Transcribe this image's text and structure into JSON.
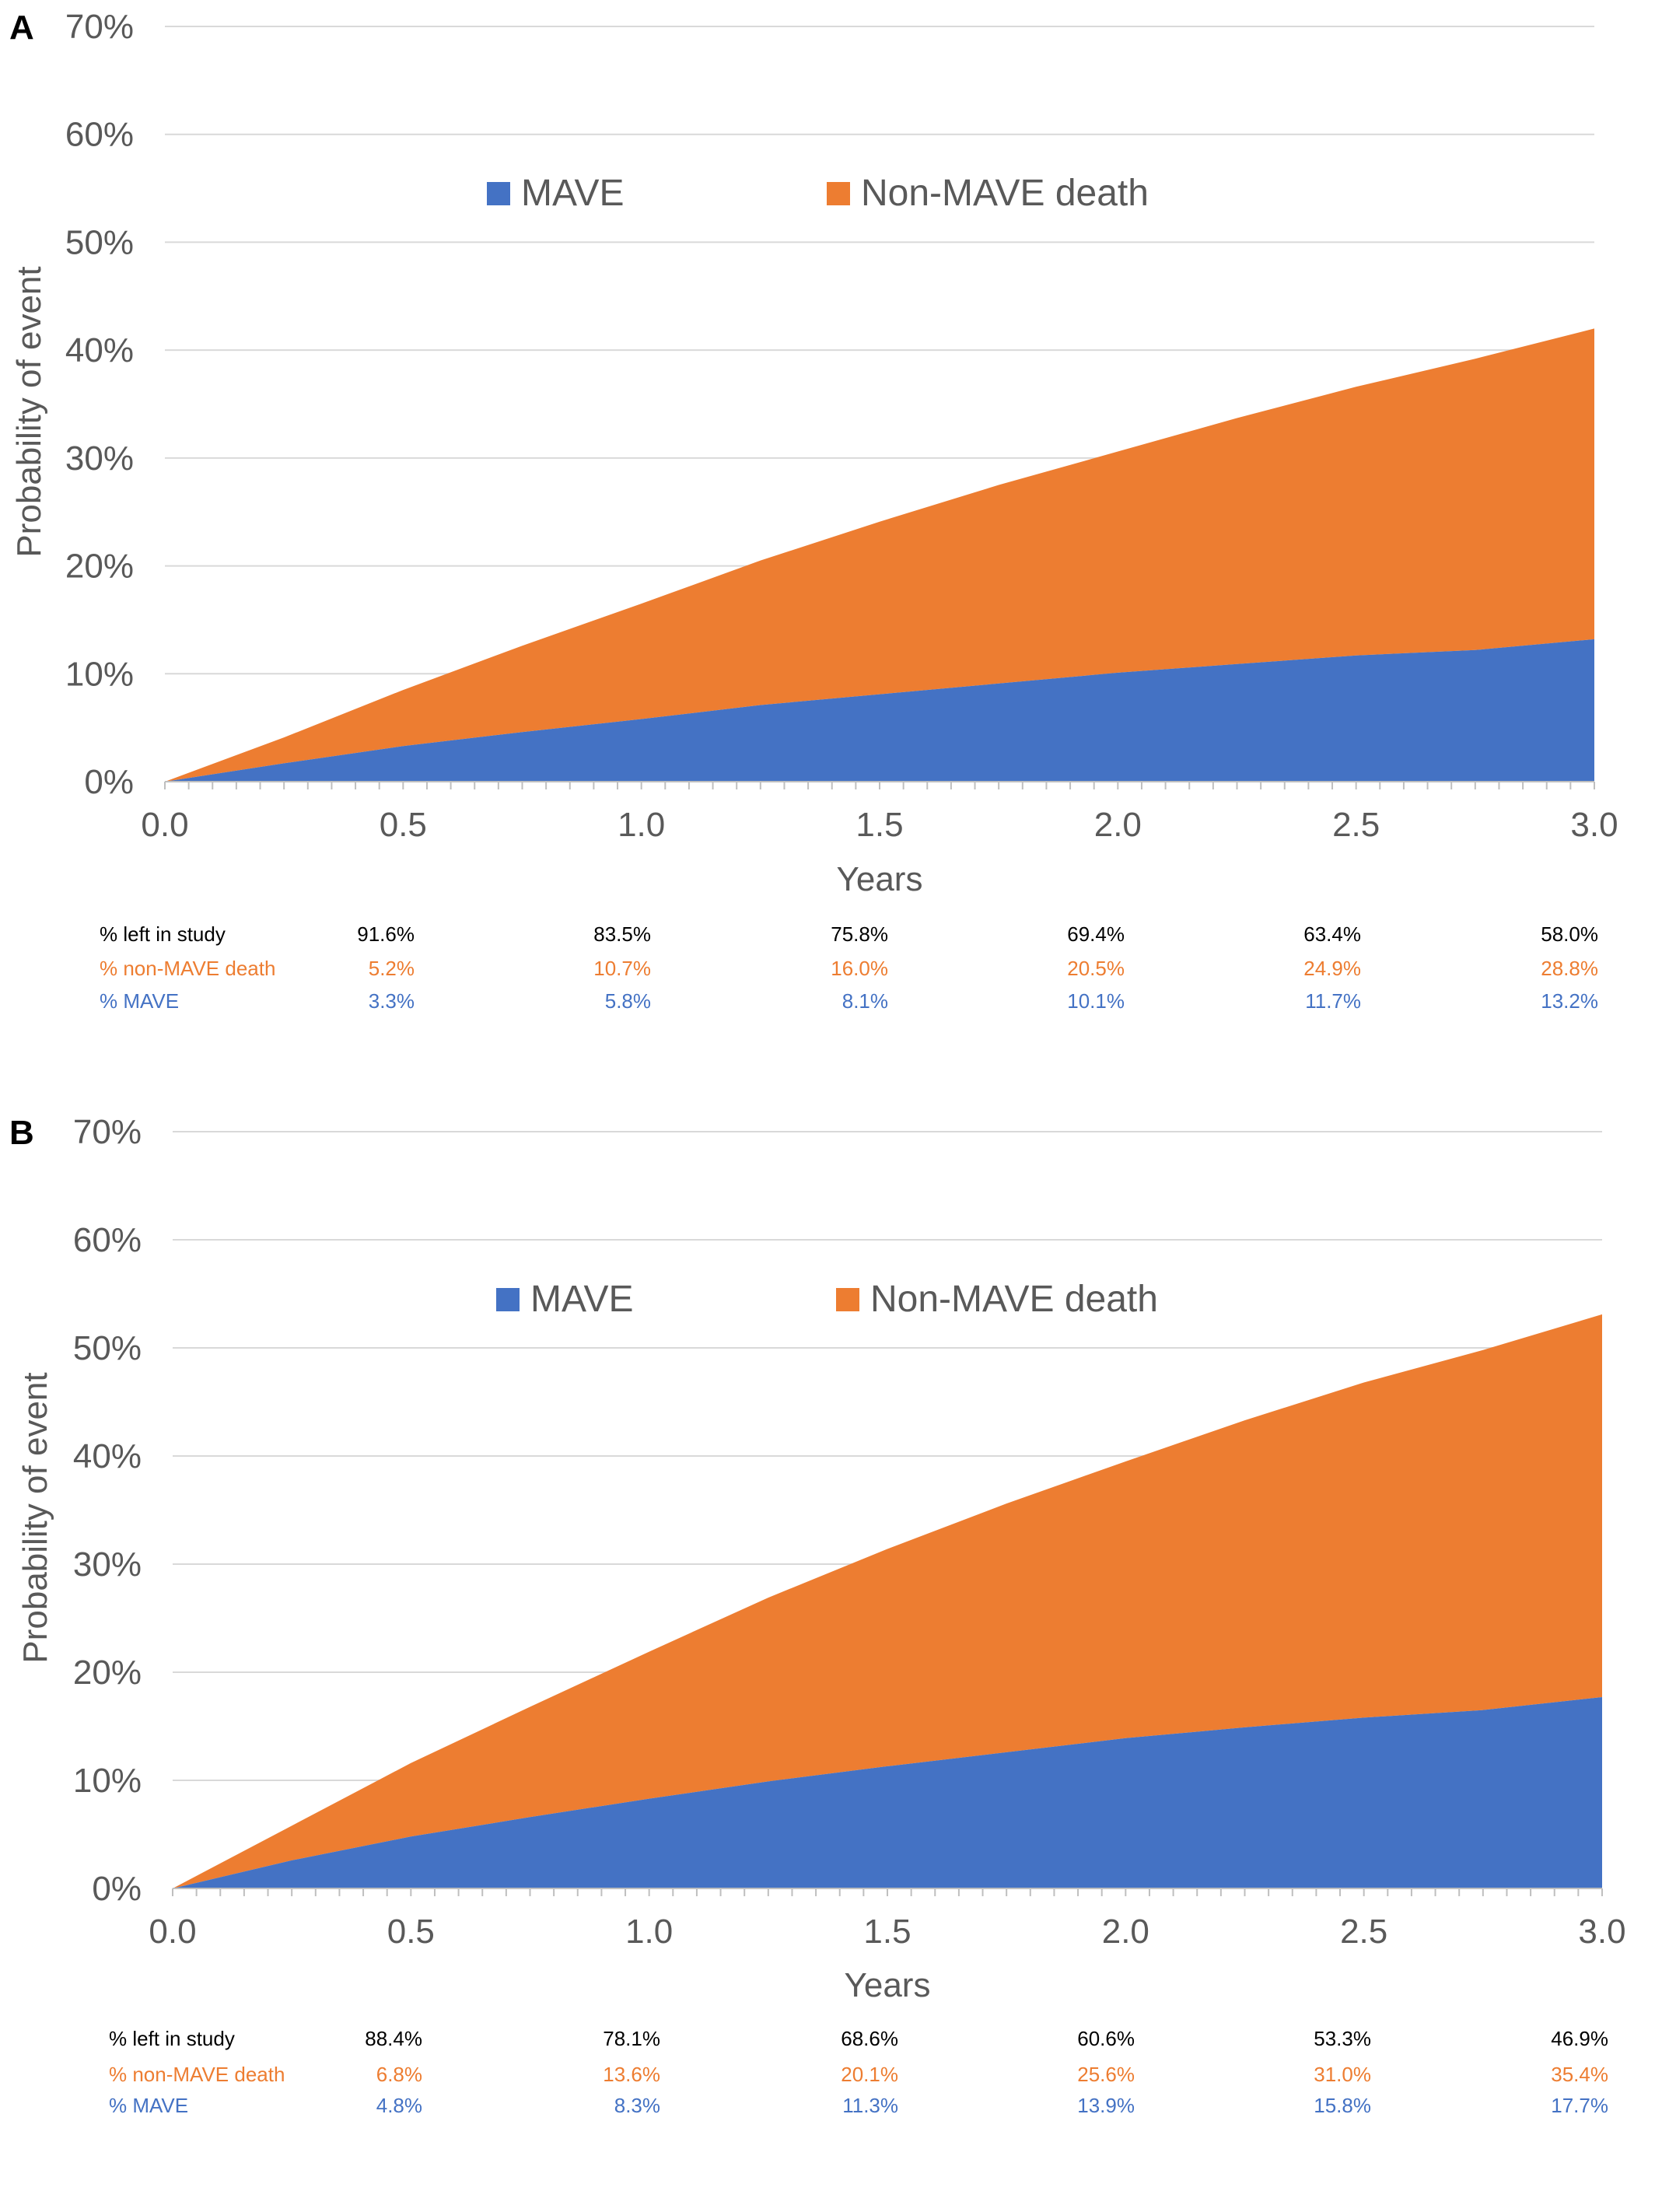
{
  "colors": {
    "mave": "#4472C4",
    "non_mave": "#ED7D31",
    "left": "#000000",
    "grid": "#D9D9D9",
    "axis": "#BFBFBF",
    "text": "#595959"
  },
  "chart_data": [
    {
      "type": "area",
      "panel": "A",
      "stacked": true,
      "xlabel": "Years",
      "ylabel": "Probability of event",
      "xlim": [
        0,
        3
      ],
      "ylim": [
        0,
        70
      ],
      "x_ticks": [
        "0.0",
        "0.5",
        "1.0",
        "1.5",
        "2.0",
        "2.5",
        "3.0"
      ],
      "y_ticks": [
        "0%",
        "10%",
        "20%",
        "30%",
        "40%",
        "50%",
        "60%",
        "70%"
      ],
      "grid": true,
      "legend": "top-center",
      "x": [
        0,
        0.25,
        0.5,
        0.75,
        1.0,
        1.25,
        1.5,
        1.75,
        2.0,
        2.25,
        2.5,
        2.75,
        3.0
      ],
      "series": [
        {
          "name": "MAVE",
          "values": [
            0,
            1.7,
            3.3,
            4.6,
            5.8,
            7.1,
            8.1,
            9.1,
            10.1,
            10.9,
            11.7,
            12.2,
            13.2
          ]
        },
        {
          "name": "Non-MAVE death",
          "values": [
            0,
            2.4,
            5.2,
            8.0,
            10.7,
            13.4,
            16.0,
            18.4,
            20.5,
            22.8,
            24.9,
            27.0,
            28.8
          ]
        }
      ],
      "table": {
        "columns": [
          "0.5",
          "1.0",
          "1.5",
          "2.0",
          "2.5",
          "3.0"
        ],
        "rows": [
          {
            "label": "% left in study",
            "values": [
              "91.6%",
              "83.5%",
              "75.8%",
              "69.4%",
              "63.4%",
              "58.0%"
            ]
          },
          {
            "label": "% non-MAVE death",
            "values": [
              "5.2%",
              "10.7%",
              "16.0%",
              "20.5%",
              "24.9%",
              "28.8%"
            ]
          },
          {
            "label": "% MAVE",
            "values": [
              "3.3%",
              "5.8%",
              "8.1%",
              "10.1%",
              "11.7%",
              "13.2%"
            ]
          }
        ]
      }
    },
    {
      "type": "area",
      "panel": "B",
      "stacked": true,
      "xlabel": "Years",
      "ylabel": "Probability of event",
      "xlim": [
        0,
        3
      ],
      "ylim": [
        0,
        70
      ],
      "x_ticks": [
        "0.0",
        "0.5",
        "1.0",
        "1.5",
        "2.0",
        "2.5",
        "3.0"
      ],
      "y_ticks": [
        "0%",
        "10%",
        "20%",
        "30%",
        "40%",
        "50%",
        "60%",
        "70%"
      ],
      "grid": true,
      "legend": "top-center",
      "x": [
        0,
        0.25,
        0.5,
        0.75,
        1.0,
        1.25,
        1.5,
        1.75,
        2.0,
        2.25,
        2.5,
        2.75,
        3.0
      ],
      "series": [
        {
          "name": "MAVE",
          "values": [
            0,
            2.6,
            4.8,
            6.6,
            8.3,
            9.9,
            11.3,
            12.6,
            13.9,
            14.9,
            15.8,
            16.5,
            17.7
          ]
        },
        {
          "name": "Non-MAVE death",
          "values": [
            0,
            3.2,
            6.8,
            10.2,
            13.6,
            17.0,
            20.1,
            23.0,
            25.6,
            28.4,
            31.0,
            33.3,
            35.4
          ]
        }
      ],
      "table": {
        "columns": [
          "0.5",
          "1.0",
          "1.5",
          "2.0",
          "2.5",
          "3.0"
        ],
        "rows": [
          {
            "label": "% left in study",
            "values": [
              "88.4%",
              "78.1%",
              "68.6%",
              "60.6%",
              "53.3%",
              "46.9%"
            ]
          },
          {
            "label": "% non-MAVE death",
            "values": [
              "6.8%",
              "13.6%",
              "20.1%",
              "25.6%",
              "31.0%",
              "35.4%"
            ]
          },
          {
            "label": "% MAVE",
            "values": [
              "4.8%",
              "8.3%",
              "11.3%",
              "13.9%",
              "15.8%",
              "17.7%"
            ]
          }
        ]
      }
    }
  ]
}
